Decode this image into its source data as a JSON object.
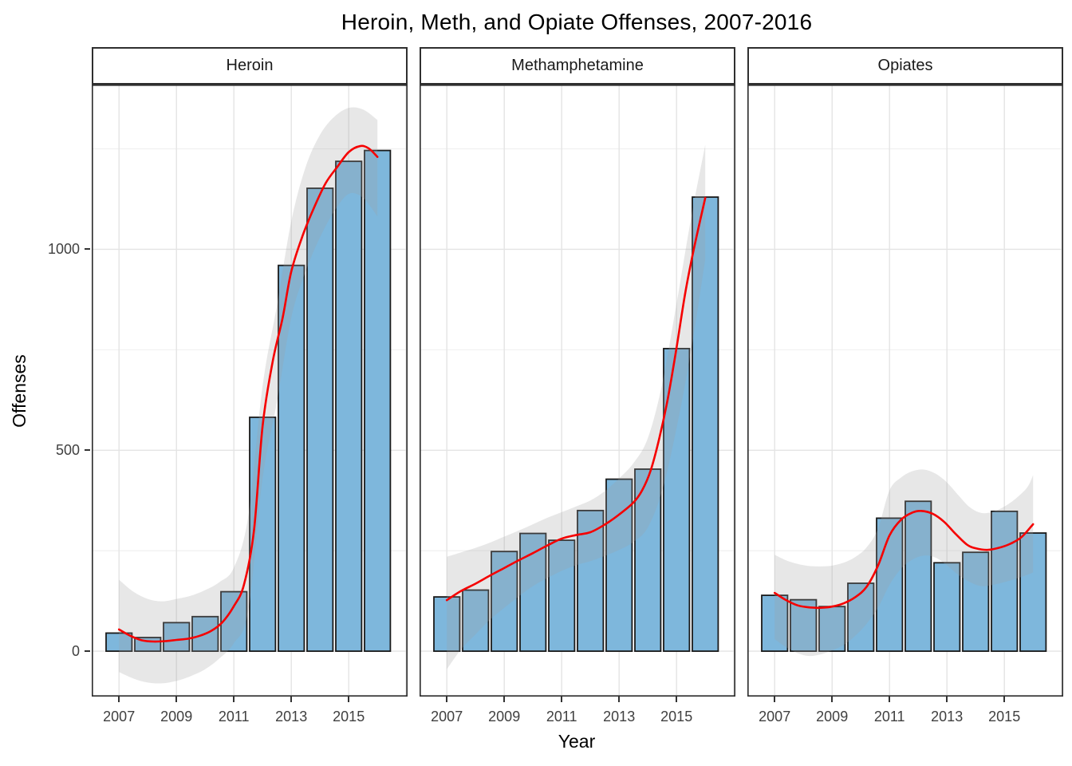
{
  "title": "Heroin, Meth, and Opiate Offenses, 2007-2016",
  "axes": {
    "x_label": "Year",
    "y_label": "Offenses",
    "y_tick_labels": [
      "0",
      "500",
      "1000"
    ],
    "y_tick_values": [
      0,
      500,
      1000
    ],
    "x_tick_labels": [
      "2007",
      "2009",
      "2011",
      "2013",
      "2015"
    ],
    "x_tick_years": [
      2007,
      2009,
      2011,
      2013,
      2015
    ]
  },
  "colors": {
    "bar_fill": "#7EB7DC",
    "bar_border": "#1a1a1a",
    "smooth_line": "#F50000",
    "ribbon_fill": "rgba(160,160,160,0.25)",
    "grid_major": "#e4e4e4",
    "grid_minor": "#efefef",
    "panel_border": "#2f2f2f",
    "strip_fill": "#ffffff",
    "tick_text": "#404040",
    "title_text": "#000000"
  },
  "chart_data": {
    "type": "bar",
    "title": "Heroin, Meth, and Opiate Offenses, 2007-2016",
    "xlabel": "Year",
    "ylabel": "Offenses",
    "categories": [
      2007,
      2008,
      2009,
      2010,
      2011,
      2012,
      2013,
      2014,
      2015,
      2016
    ],
    "ylim": [
      -113,
      1410
    ],
    "xlim": [
      2006.05,
      2017.05
    ],
    "bar_width_years": 0.9,
    "y_major_gridlines": [
      0,
      500,
      1000
    ],
    "y_minor_gridlines": [
      250,
      750,
      1250
    ],
    "x_major_gridlines": [
      2007,
      2009,
      2011,
      2013,
      2015,
      2017
    ],
    "legend": "none",
    "series": [
      {
        "name": "Heroin",
        "values": [
          45,
          34,
          71,
          86,
          148,
          582,
          960,
          1152,
          1219,
          1246
        ],
        "smooth": [
          [
            2007,
            54
          ],
          [
            2007.4,
            38
          ],
          [
            2007.8,
            27
          ],
          [
            2008.2,
            24
          ],
          [
            2008.6,
            25
          ],
          [
            2009,
            28
          ],
          [
            2009.4,
            31
          ],
          [
            2009.8,
            38
          ],
          [
            2010.2,
            50
          ],
          [
            2010.6,
            72
          ],
          [
            2011,
            112
          ],
          [
            2011.35,
            165
          ],
          [
            2011.7,
            300
          ],
          [
            2012,
            560
          ],
          [
            2012.35,
            720
          ],
          [
            2012.7,
            830
          ],
          [
            2013,
            945
          ],
          [
            2013.4,
            1035
          ],
          [
            2013.8,
            1105
          ],
          [
            2014.2,
            1165
          ],
          [
            2014.6,
            1205
          ],
          [
            2015,
            1242
          ],
          [
            2015.4,
            1257
          ],
          [
            2015.7,
            1251
          ],
          [
            2016,
            1230
          ]
        ],
        "ribbon": [
          [
            2007,
            -52,
            178
          ],
          [
            2007.5,
            -68,
            148
          ],
          [
            2008,
            -78,
            130
          ],
          [
            2008.5,
            -80,
            124
          ],
          [
            2009,
            -74,
            130
          ],
          [
            2009.5,
            -62,
            138
          ],
          [
            2010,
            -45,
            152
          ],
          [
            2010.5,
            -18,
            172
          ],
          [
            2011,
            20,
            208
          ],
          [
            2011.5,
            100,
            335
          ],
          [
            2012,
            430,
            660
          ],
          [
            2012.5,
            620,
            860
          ],
          [
            2013,
            830,
            1070
          ],
          [
            2013.5,
            945,
            1205
          ],
          [
            2014,
            1030,
            1285
          ],
          [
            2014.5,
            1095,
            1330
          ],
          [
            2015,
            1138,
            1352
          ],
          [
            2015.5,
            1128,
            1348
          ],
          [
            2016,
            1082,
            1322
          ]
        ]
      },
      {
        "name": "Methamphetamine",
        "values": [
          135,
          152,
          248,
          293,
          276,
          350,
          428,
          453,
          753,
          1130
        ],
        "smooth": [
          [
            2007,
            127
          ],
          [
            2007.5,
            150
          ],
          [
            2008,
            168
          ],
          [
            2008.5,
            188
          ],
          [
            2009,
            207
          ],
          [
            2009.5,
            226
          ],
          [
            2010,
            244
          ],
          [
            2010.5,
            263
          ],
          [
            2011,
            280
          ],
          [
            2011.5,
            289
          ],
          [
            2012,
            296
          ],
          [
            2012.5,
            315
          ],
          [
            2013,
            340
          ],
          [
            2013.5,
            370
          ],
          [
            2013.8,
            400
          ],
          [
            2014.1,
            450
          ],
          [
            2014.4,
            530
          ],
          [
            2014.7,
            630
          ],
          [
            2015,
            755
          ],
          [
            2015.3,
            890
          ],
          [
            2015.6,
            1000
          ],
          [
            2016,
            1128
          ]
        ],
        "ribbon": [
          [
            2007,
            -45,
            235
          ],
          [
            2007.5,
            5,
            246
          ],
          [
            2008,
            42,
            257
          ],
          [
            2008.5,
            78,
            270
          ],
          [
            2009,
            108,
            285
          ],
          [
            2009.5,
            136,
            300
          ],
          [
            2010,
            162,
            316
          ],
          [
            2010.5,
            182,
            332
          ],
          [
            2011,
            200,
            346
          ],
          [
            2011.5,
            214,
            360
          ],
          [
            2012,
            224,
            375
          ],
          [
            2012.5,
            237,
            398
          ],
          [
            2013,
            252,
            430
          ],
          [
            2013.5,
            272,
            468
          ],
          [
            2014,
            308,
            530
          ],
          [
            2014.5,
            400,
            665
          ],
          [
            2015,
            555,
            865
          ],
          [
            2015.5,
            745,
            1075
          ],
          [
            2016,
            975,
            1260
          ]
        ]
      },
      {
        "name": "Opiates",
        "values": [
          139,
          128,
          111,
          169,
          331,
          373,
          220,
          246,
          348,
          294
        ],
        "smooth": [
          [
            2007,
            145
          ],
          [
            2007.4,
            127
          ],
          [
            2007.8,
            114
          ],
          [
            2008.2,
            109
          ],
          [
            2008.6,
            108
          ],
          [
            2009,
            111
          ],
          [
            2009.4,
            119
          ],
          [
            2009.8,
            134
          ],
          [
            2010.2,
            160
          ],
          [
            2010.6,
            213
          ],
          [
            2011,
            288
          ],
          [
            2011.4,
            327
          ],
          [
            2011.8,
            345
          ],
          [
            2012.1,
            349
          ],
          [
            2012.5,
            342
          ],
          [
            2012.9,
            322
          ],
          [
            2013.3,
            292
          ],
          [
            2013.7,
            265
          ],
          [
            2014,
            256
          ],
          [
            2014.4,
            252
          ],
          [
            2014.8,
            257
          ],
          [
            2015.2,
            267
          ],
          [
            2015.6,
            284
          ],
          [
            2016,
            316
          ]
        ],
        "ribbon": [
          [
            2007,
            30,
            240
          ],
          [
            2007.4,
            10,
            226
          ],
          [
            2007.8,
            -5,
            217
          ],
          [
            2008.2,
            -12,
            212
          ],
          [
            2008.6,
            -8,
            211
          ],
          [
            2009,
            2,
            213
          ],
          [
            2009.4,
            15,
            220
          ],
          [
            2009.8,
            38,
            234
          ],
          [
            2010.2,
            68,
            258
          ],
          [
            2010.6,
            108,
            305
          ],
          [
            2011,
            165,
            400
          ],
          [
            2011.4,
            205,
            432
          ],
          [
            2011.8,
            228,
            448
          ],
          [
            2012.2,
            238,
            452
          ],
          [
            2012.6,
            233,
            442
          ],
          [
            2013,
            214,
            420
          ],
          [
            2013.4,
            190,
            388
          ],
          [
            2013.8,
            172,
            358
          ],
          [
            2014.2,
            162,
            344
          ],
          [
            2014.6,
            165,
            347
          ],
          [
            2015,
            172,
            360
          ],
          [
            2015.4,
            180,
            380
          ],
          [
            2015.8,
            190,
            408
          ],
          [
            2016,
            196,
            438
          ]
        ]
      }
    ]
  }
}
